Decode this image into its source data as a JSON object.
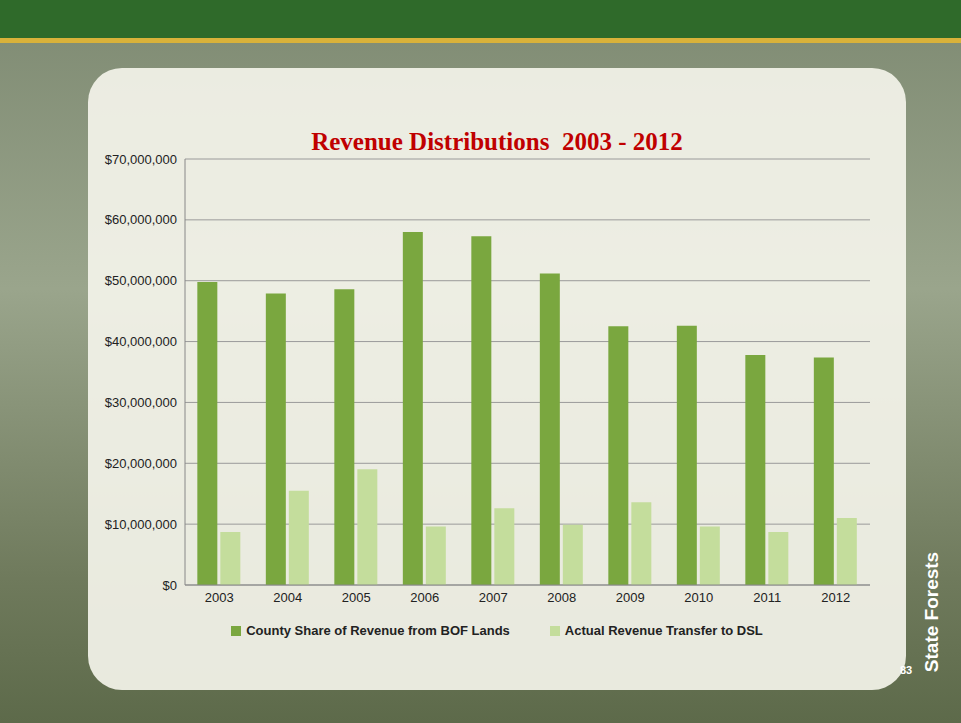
{
  "chart_data": {
    "type": "bar",
    "title": "Revenue Distributions  2003 - 2012",
    "categories": [
      "2003",
      "2004",
      "2005",
      "2006",
      "2007",
      "2008",
      "2009",
      "2010",
      "2011",
      "2012"
    ],
    "series": [
      {
        "name": "County Share of Revenue from BOF Lands",
        "color": "#7aa73f",
        "values": [
          49800000,
          47900000,
          48600000,
          58000000,
          57300000,
          51200000,
          42500000,
          42600000,
          37800000,
          37400000
        ]
      },
      {
        "name": "Actual Revenue Transfer to DSL",
        "color": "#c4dd9c",
        "values": [
          8700000,
          15500000,
          19000000,
          9600000,
          12600000,
          9900000,
          13600000,
          9600000,
          8700000,
          11000000
        ]
      }
    ],
    "ylim": [
      0,
      70000000
    ],
    "yticks": [
      {
        "value": 0,
        "label": "$0"
      },
      {
        "value": 10000000,
        "label": "$10,000,000"
      },
      {
        "value": 20000000,
        "label": "$20,000,000"
      },
      {
        "value": 30000000,
        "label": "$30,000,000"
      },
      {
        "value": 40000000,
        "label": "$40,000,000"
      },
      {
        "value": 50000000,
        "label": "$50,000,000"
      },
      {
        "value": 60000000,
        "label": "$60,000,000"
      },
      {
        "value": 70000000,
        "label": "$70,000,000"
      }
    ],
    "grid": true,
    "legend": "bottom",
    "annotations": [
      "State Forests",
      "83"
    ]
  }
}
